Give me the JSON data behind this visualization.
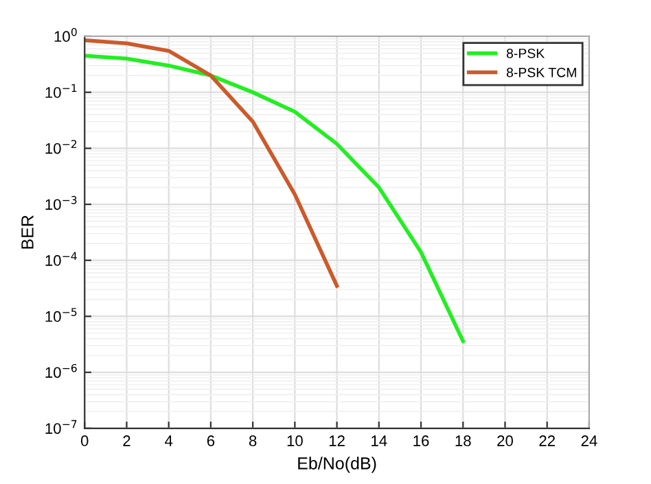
{
  "chart_data": {
    "type": "line",
    "xlabel": "Eb/No(dB)",
    "ylabel": "BER",
    "log": "y",
    "grid": true,
    "legend": "top right",
    "line_style": "solid",
    "marker": "none",
    "x": [
      0,
      2,
      4,
      6,
      8,
      10,
      12,
      14,
      16,
      18
    ],
    "xlim": [
      0,
      24
    ],
    "xticks": [
      0,
      2,
      4,
      6,
      8,
      10,
      12,
      14,
      16,
      18,
      20,
      22,
      24
    ],
    "ylim": [
      1e-07,
      1
    ],
    "yticks": [
      {
        "value": 1e-07,
        "label": "10$^{−7}$"
      },
      {
        "value": 1e-06,
        "label": "10$^{−6}$"
      },
      {
        "value": 1e-05,
        "label": "10$^{−5}$"
      },
      {
        "value": 0.0001,
        "label": "10$^{−4}$"
      },
      {
        "value": 0.001,
        "label": "10$^{−3}$"
      },
      {
        "value": 0.01,
        "label": "10$^{−2}$"
      },
      {
        "value": 0.1,
        "label": "10$^{−1}$"
      },
      {
        "value": 1,
        "label": "10$^{0}$"
      }
    ],
    "series": [
      {
        "name": "8-PSK",
        "color": "#22ee22",
        "values": [
          0.45,
          0.4,
          0.3,
          0.2,
          0.1,
          0.045,
          0.012,
          0.002,
          0.00014,
          3.6e-06
        ]
      },
      {
        "name": "8-PSK TCM",
        "color": "#cc5a2a",
        "x": [
          0,
          2,
          4,
          6,
          8,
          10,
          12
        ],
        "values": [
          0.85,
          0.75,
          0.55,
          0.2,
          0.03,
          0.0015,
          3.5e-05
        ]
      }
    ]
  }
}
